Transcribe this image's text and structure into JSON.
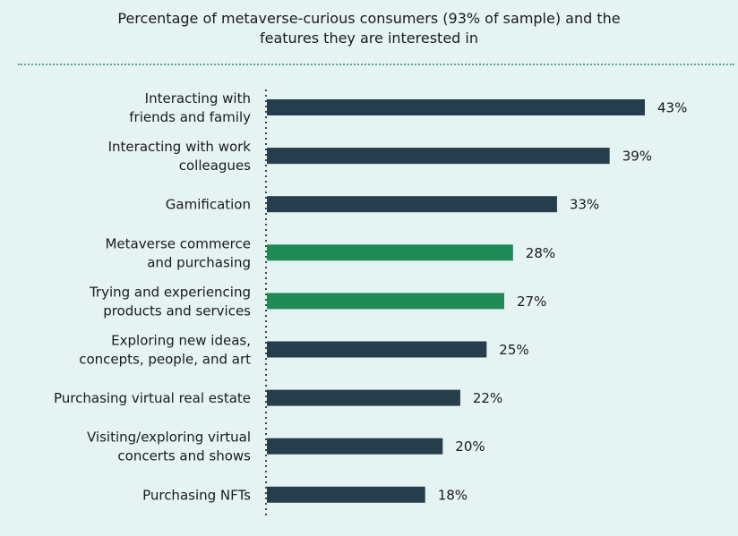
{
  "title_lines": [
    "Percentage  of metaverse-curious consumers (93% of sample) and the",
    "features they are interested in"
  ],
  "colors": {
    "background": "#e6f3f3",
    "bar_default": "#253e4c",
    "bar_highlight": "#1f8a55",
    "divider": "#5aa695",
    "axis": "#444444",
    "text": "#1a1a1a"
  },
  "chart_data": {
    "type": "bar",
    "orientation": "horizontal",
    "title": "Percentage  of metaverse-curious consumers (93% of sample) and the features they are interested in",
    "xlabel": "",
    "ylabel": "",
    "xlim": [
      0,
      43
    ],
    "grid": false,
    "legend": "none",
    "value_suffix": "%",
    "categories": [
      [
        "Interacting with",
        "friends and family"
      ],
      [
        "Interacting with work",
        "colleagues"
      ],
      [
        "Gamification"
      ],
      [
        "Metaverse commerce",
        "and purchasing"
      ],
      [
        "Trying and experiencing",
        "products and services"
      ],
      [
        "Exploring new ideas,",
        "concepts, people, and art"
      ],
      [
        "Purchasing virtual real estate"
      ],
      [
        "Visiting/exploring virtual",
        "concerts and shows"
      ],
      [
        "Purchasing NFTs"
      ]
    ],
    "values": [
      43,
      39,
      33,
      28,
      27,
      25,
      22,
      20,
      18
    ],
    "highlighted": [
      false,
      false,
      false,
      true,
      true,
      false,
      false,
      false,
      false
    ]
  }
}
